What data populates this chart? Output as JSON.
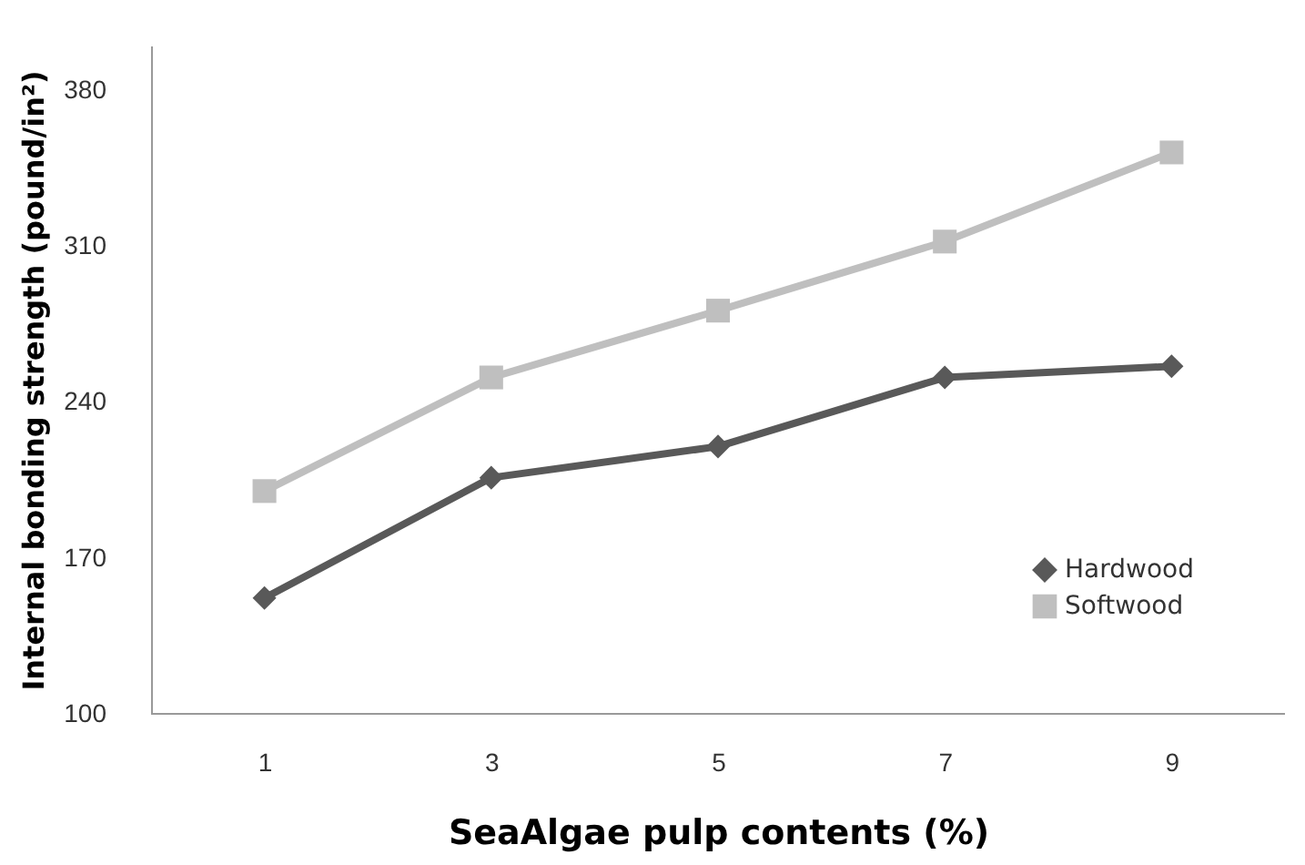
{
  "chart_data": {
    "type": "line",
    "xlabel": "SeaAlgae pulp contents (%)",
    "ylabel": "Internal bonding strength (pound/in²)",
    "categories": [
      "1",
      "3",
      "5",
      "7",
      "9"
    ],
    "series": [
      {
        "name": "Hardwood",
        "color": "#595959",
        "marker": "diamond",
        "values": [
          152,
          206,
          220,
          251,
          256
        ]
      },
      {
        "name": "Softwood",
        "color": "#bfbfbf",
        "marker": "square",
        "values": [
          200,
          251,
          281,
          312,
          352
        ]
      }
    ],
    "ylim": [
      100,
      400
    ],
    "yticks": [
      100,
      170,
      240,
      310,
      380
    ],
    "grid": false,
    "legend": "bottom right"
  }
}
